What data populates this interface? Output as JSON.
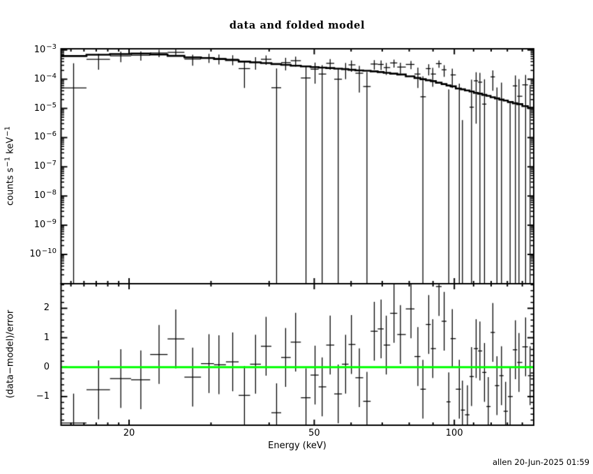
{
  "title": "data and folded model",
  "footer": "allen 20-Jun-2025 01:59",
  "colors": {
    "foreground": "#000000",
    "background": "#ffffff",
    "zero_line": "#00ff00"
  },
  "chart_data": {
    "type": "scatter",
    "subtype": "xspec-counts-spectrum-with-folded-model-and-residuals",
    "title": "data and folded model",
    "grid": false,
    "x": {
      "label": "Energy (keV)",
      "scale": "log",
      "min": 14.3,
      "max": 148,
      "ticks_major": [
        20,
        50,
        100
      ],
      "ticks_minor": [
        15,
        16,
        17,
        18,
        19,
        30,
        40,
        60,
        70,
        80,
        90,
        110,
        120,
        130,
        140
      ]
    },
    "panel_top": {
      "y_label": "counts s⁻¹ keV⁻¹",
      "y_label_segments": [
        [
          "t",
          "counts s"
        ],
        [
          "s",
          "-1"
        ],
        [
          "t",
          " keV"
        ],
        [
          "s",
          "-1"
        ]
      ],
      "y_scale": "log",
      "y_min": 1e-11,
      "y_max": 0.0011,
      "tick_exponents": [
        -3,
        -4,
        -5,
        -6,
        -7,
        -8,
        -9,
        -10
      ]
    },
    "panel_bottom": {
      "y_label": "(data−model)/error",
      "y_scale": "linear",
      "y_min": -1.97,
      "y_max": 2.84,
      "ticks_major": [
        2,
        1,
        0,
        -1
      ],
      "minor_step": 0.2,
      "error_bar_half": 1.0
    },
    "series": {
      "energy_kev": [
        15.2,
        17.2,
        19.2,
        21.2,
        23.2,
        25.2,
        27.4,
        29.7,
        31.2,
        33.4,
        35.4,
        37.4,
        39.4,
        41.5,
        43.4,
        45.6,
        48.0,
        50.2,
        52.0,
        54.1,
        56.3,
        58.4,
        60.1,
        62.5,
        64.9,
        67.3,
        69.6,
        71.4,
        74.2,
        76.6,
        80.7,
        83.5,
        85.6,
        88.1,
        89.9,
        92.7,
        95.1,
        97.3,
        99.0,
        102.5,
        104.1,
        106.7,
        108.9,
        111.4,
        113.5,
        116.1,
        118.3,
        121.0,
        123.5,
        126.3,
        128.9,
        131.8,
        135.3,
        137.7,
        142.3,
        145.5
      ],
      "rate": [
        5e-05,
        0.00048,
        0.00063,
        0.00066,
        0.00079,
        0.00083,
        0.00049,
        0.00055,
        0.00051,
        0.00048,
        0.00023,
        0.00039,
        0.00048,
        5.1e-05,
        0.00037,
        0.00043,
        0.00011,
        0.00022,
        0.00015,
        0.00035,
        0.0001,
        0.00023,
        0.00031,
        0.00016,
        5.6e-05,
        0.00033,
        0.00032,
        0.00025,
        0.00036,
        0.00026,
        0.00032,
        0.00015,
        2.5e-05,
        0.00023,
        0.00015,
        0.00034,
        0.00021,
        -4.5e-05,
        0.00014,
        -2e-05,
        -8.6e-05,
        -9.7e-05,
        1.1e-05,
        8.8e-05,
        7.9e-05,
        1.4e-05,
        -8e-05,
        0.00012,
        -2.8e-05,
        -3.2e-06,
        -0.0001,
        -6.4e-05,
        5.9e-05,
        2.6e-05,
        6.4e-05,
        -1.1e-05
      ],
      "rate_err": [
        0.0003,
        0.00027,
        0.00025,
        0.00023,
        0.00022,
        0.00021,
        0.0002,
        0.00019,
        0.00019,
        0.00018,
        0.00018,
        0.00018,
        0.00017,
        0.00018,
        0.00017,
        0.00016,
        0.00016,
        0.00015,
        0.00015,
        0.00014,
        0.00014,
        0.00013,
        0.00013,
        0.000125,
        0.00012,
        0.00012,
        0.000115,
        0.00011,
        0.00011,
        0.000105,
        0.0001,
        0.0001,
        0.0001,
        9.5e-05,
        9.5e-05,
        9.5e-05,
        9e-05,
        9e-05,
        9e-05,
        9e-05,
        9e-05,
        8.5e-05,
        8.5e-05,
        8.5e-05,
        8.5e-05,
        8.5e-05,
        8e-05,
        8e-05,
        8e-05,
        8e-05,
        8e-05,
        8e-05,
        7.5e-05,
        7.5e-05,
        7.5e-05,
        7.5e-05
      ],
      "model": [
        0.00062,
        0.00069,
        0.00073,
        0.00076,
        0.0007,
        0.00063,
        0.00056,
        0.00053,
        0.00049,
        0.00045,
        0.0004,
        0.000375,
        0.000355,
        0.00033,
        0.00031,
        0.00029,
        0.000275,
        0.00026,
        0.00025,
        0.00024,
        0.00023,
        0.00022,
        0.00021,
        0.0002,
        0.000195,
        0.000185,
        0.000175,
        0.000165,
        0.000155,
        0.000145,
        0.000125,
        0.00011,
        0.0001,
        9.2e-05,
        8.6e-05,
        7.6e-05,
        6.8e-05,
        6.1e-05,
        5.7e-05,
        4.8e-05,
        4.5e-05,
        4.1e-05,
        3.8e-05,
        3.4e-05,
        3.2e-05,
        2.9e-05,
        2.7e-05,
        2.4e-05,
        2.2e-05,
        2e-05,
        1.85e-05,
        1.65e-05,
        1.5e-05,
        1.4e-05,
        1.2e-05,
        1.05e-05
      ],
      "resid_sigma": [
        -1.9,
        -0.77,
        -0.39,
        -0.43,
        0.43,
        0.96,
        -0.34,
        0.12,
        0.08,
        0.18,
        -0.96,
        0.1,
        0.71,
        -1.55,
        0.33,
        0.85,
        -1.04,
        -0.27,
        -0.67,
        0.75,
        -0.91,
        0.1,
        0.77,
        -0.36,
        -1.16,
        1.22,
        1.3,
        0.75,
        1.83,
        1.11,
        1.98,
        0.36,
        -0.75,
        1.45,
        0.63,
        2.74,
        1.56,
        -1.18,
        0.97,
        -0.75,
        -1.46,
        -1.62,
        -0.32,
        0.63,
        0.55,
        -0.18,
        -1.34,
        1.18,
        -0.63,
        -0.29,
        -1.5,
        -1.0,
        0.59,
        0.16,
        0.69,
        -0.29
      ]
    },
    "legend": null
  }
}
